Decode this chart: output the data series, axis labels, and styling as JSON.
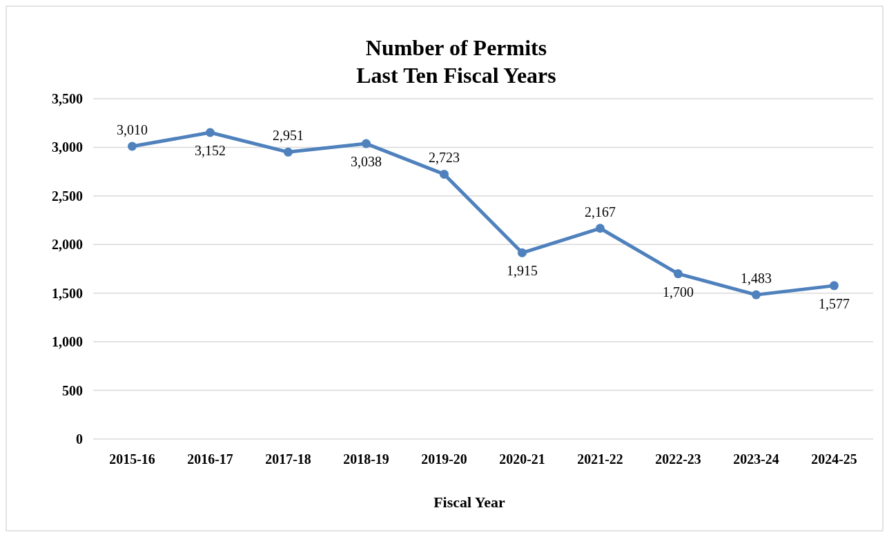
{
  "chart_data": {
    "type": "line",
    "title": "Number of Permits",
    "subtitle": "Last Ten Fiscal Years",
    "xlabel": "Fiscal Year",
    "categories": [
      "2015-16",
      "2016-17",
      "2017-18",
      "2018-19",
      "2019-20",
      "2020-21",
      "2021-22",
      "2022-23",
      "2023-24",
      "2024-25"
    ],
    "series": [
      {
        "color": "#4f81bd",
        "values": [
          3010,
          3152,
          2951,
          3038,
          2723,
          1915,
          2167,
          1700,
          1483,
          1577
        ],
        "value_labels": [
          "3,010",
          "3,152",
          "2,951",
          "3,038",
          "2,723",
          "1,915",
          "2,167",
          "1,700",
          "1,483",
          "1,577"
        ]
      }
    ],
    "ylim": [
      0,
      3500
    ],
    "yticks": [
      {
        "value": 0,
        "label": "0"
      },
      {
        "value": 500,
        "label": "500"
      },
      {
        "value": 1000,
        "label": "1,000"
      },
      {
        "value": 1500,
        "label": "1,500"
      },
      {
        "value": 2000,
        "label": "2,000"
      },
      {
        "value": 2500,
        "label": "2,500"
      },
      {
        "value": 3000,
        "label": "3,000"
      },
      {
        "value": 3500,
        "label": "3,500"
      }
    ],
    "grid": "y",
    "marker": "circle",
    "line_style": "solid"
  }
}
